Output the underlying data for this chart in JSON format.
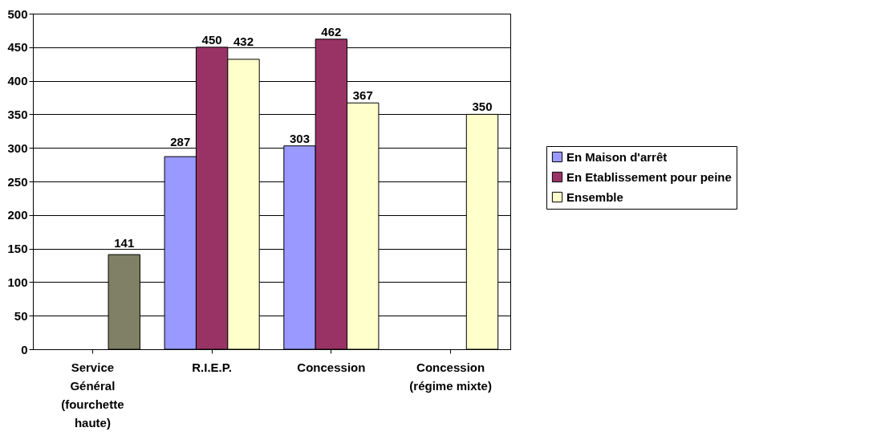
{
  "chart_data": {
    "type": "bar",
    "categories": [
      "Service Général (fourchette haute)",
      "R.I.E.P.",
      "Concession",
      "Concession (régime mixte)"
    ],
    "series": [
      {
        "name": "En Maison d'arrêt",
        "color": "#9999ff",
        "values": [
          null,
          287,
          303,
          null
        ]
      },
      {
        "name": "En Etablissement pour peine",
        "color": "#993366",
        "values": [
          null,
          450,
          462,
          null
        ]
      },
      {
        "name": "Ensemble",
        "color": "#ffffcc",
        "colors": [
          "#808066",
          "#ffffcc",
          "#ffffcc",
          "#ffffcc"
        ],
        "values": [
          141,
          432,
          367,
          350
        ]
      }
    ],
    "ylim": [
      0,
      500
    ],
    "yticks": [
      0,
      50,
      100,
      150,
      200,
      250,
      300,
      350,
      400,
      450,
      500
    ],
    "grid": "y",
    "legend": "right",
    "data_labels": true
  }
}
